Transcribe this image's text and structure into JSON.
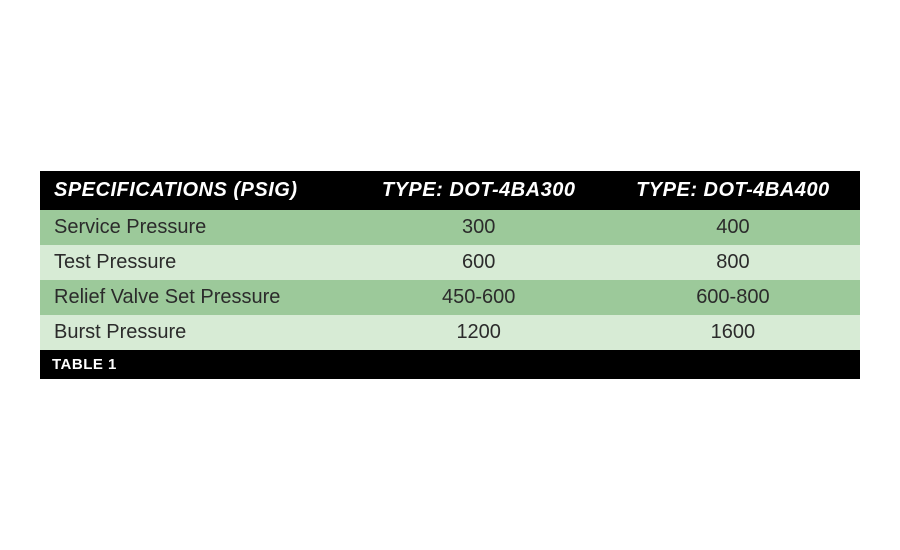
{
  "table": {
    "type": "table",
    "caption": "TABLE 1",
    "header_bg": "#000000",
    "header_fg": "#ffffff",
    "row_colors": [
      "#9cc99a",
      "#d7ebd5"
    ],
    "text_color": "#2b2b2b",
    "header_fontsize": 20,
    "cell_fontsize": 20,
    "caption_fontsize": 15,
    "columns": [
      {
        "label": "SPECIFICATIONS (PSIG)",
        "align": "left",
        "width_pct": 38
      },
      {
        "label": "TYPE: DOT-4BA300",
        "align": "center",
        "width_pct": 31
      },
      {
        "label": "TYPE: DOT-4BA400",
        "align": "center",
        "width_pct": 31
      }
    ],
    "rows": [
      {
        "spec": "Service Pressure",
        "ba300": "300",
        "ba400": "400"
      },
      {
        "spec": "Test Pressure",
        "ba300": "600",
        "ba400": "800"
      },
      {
        "spec": "Relief Valve Set Pressure",
        "ba300": "450-600",
        "ba400": "600-800"
      },
      {
        "spec": "Burst Pressure",
        "ba300": "1200",
        "ba400": "1600"
      }
    ]
  }
}
